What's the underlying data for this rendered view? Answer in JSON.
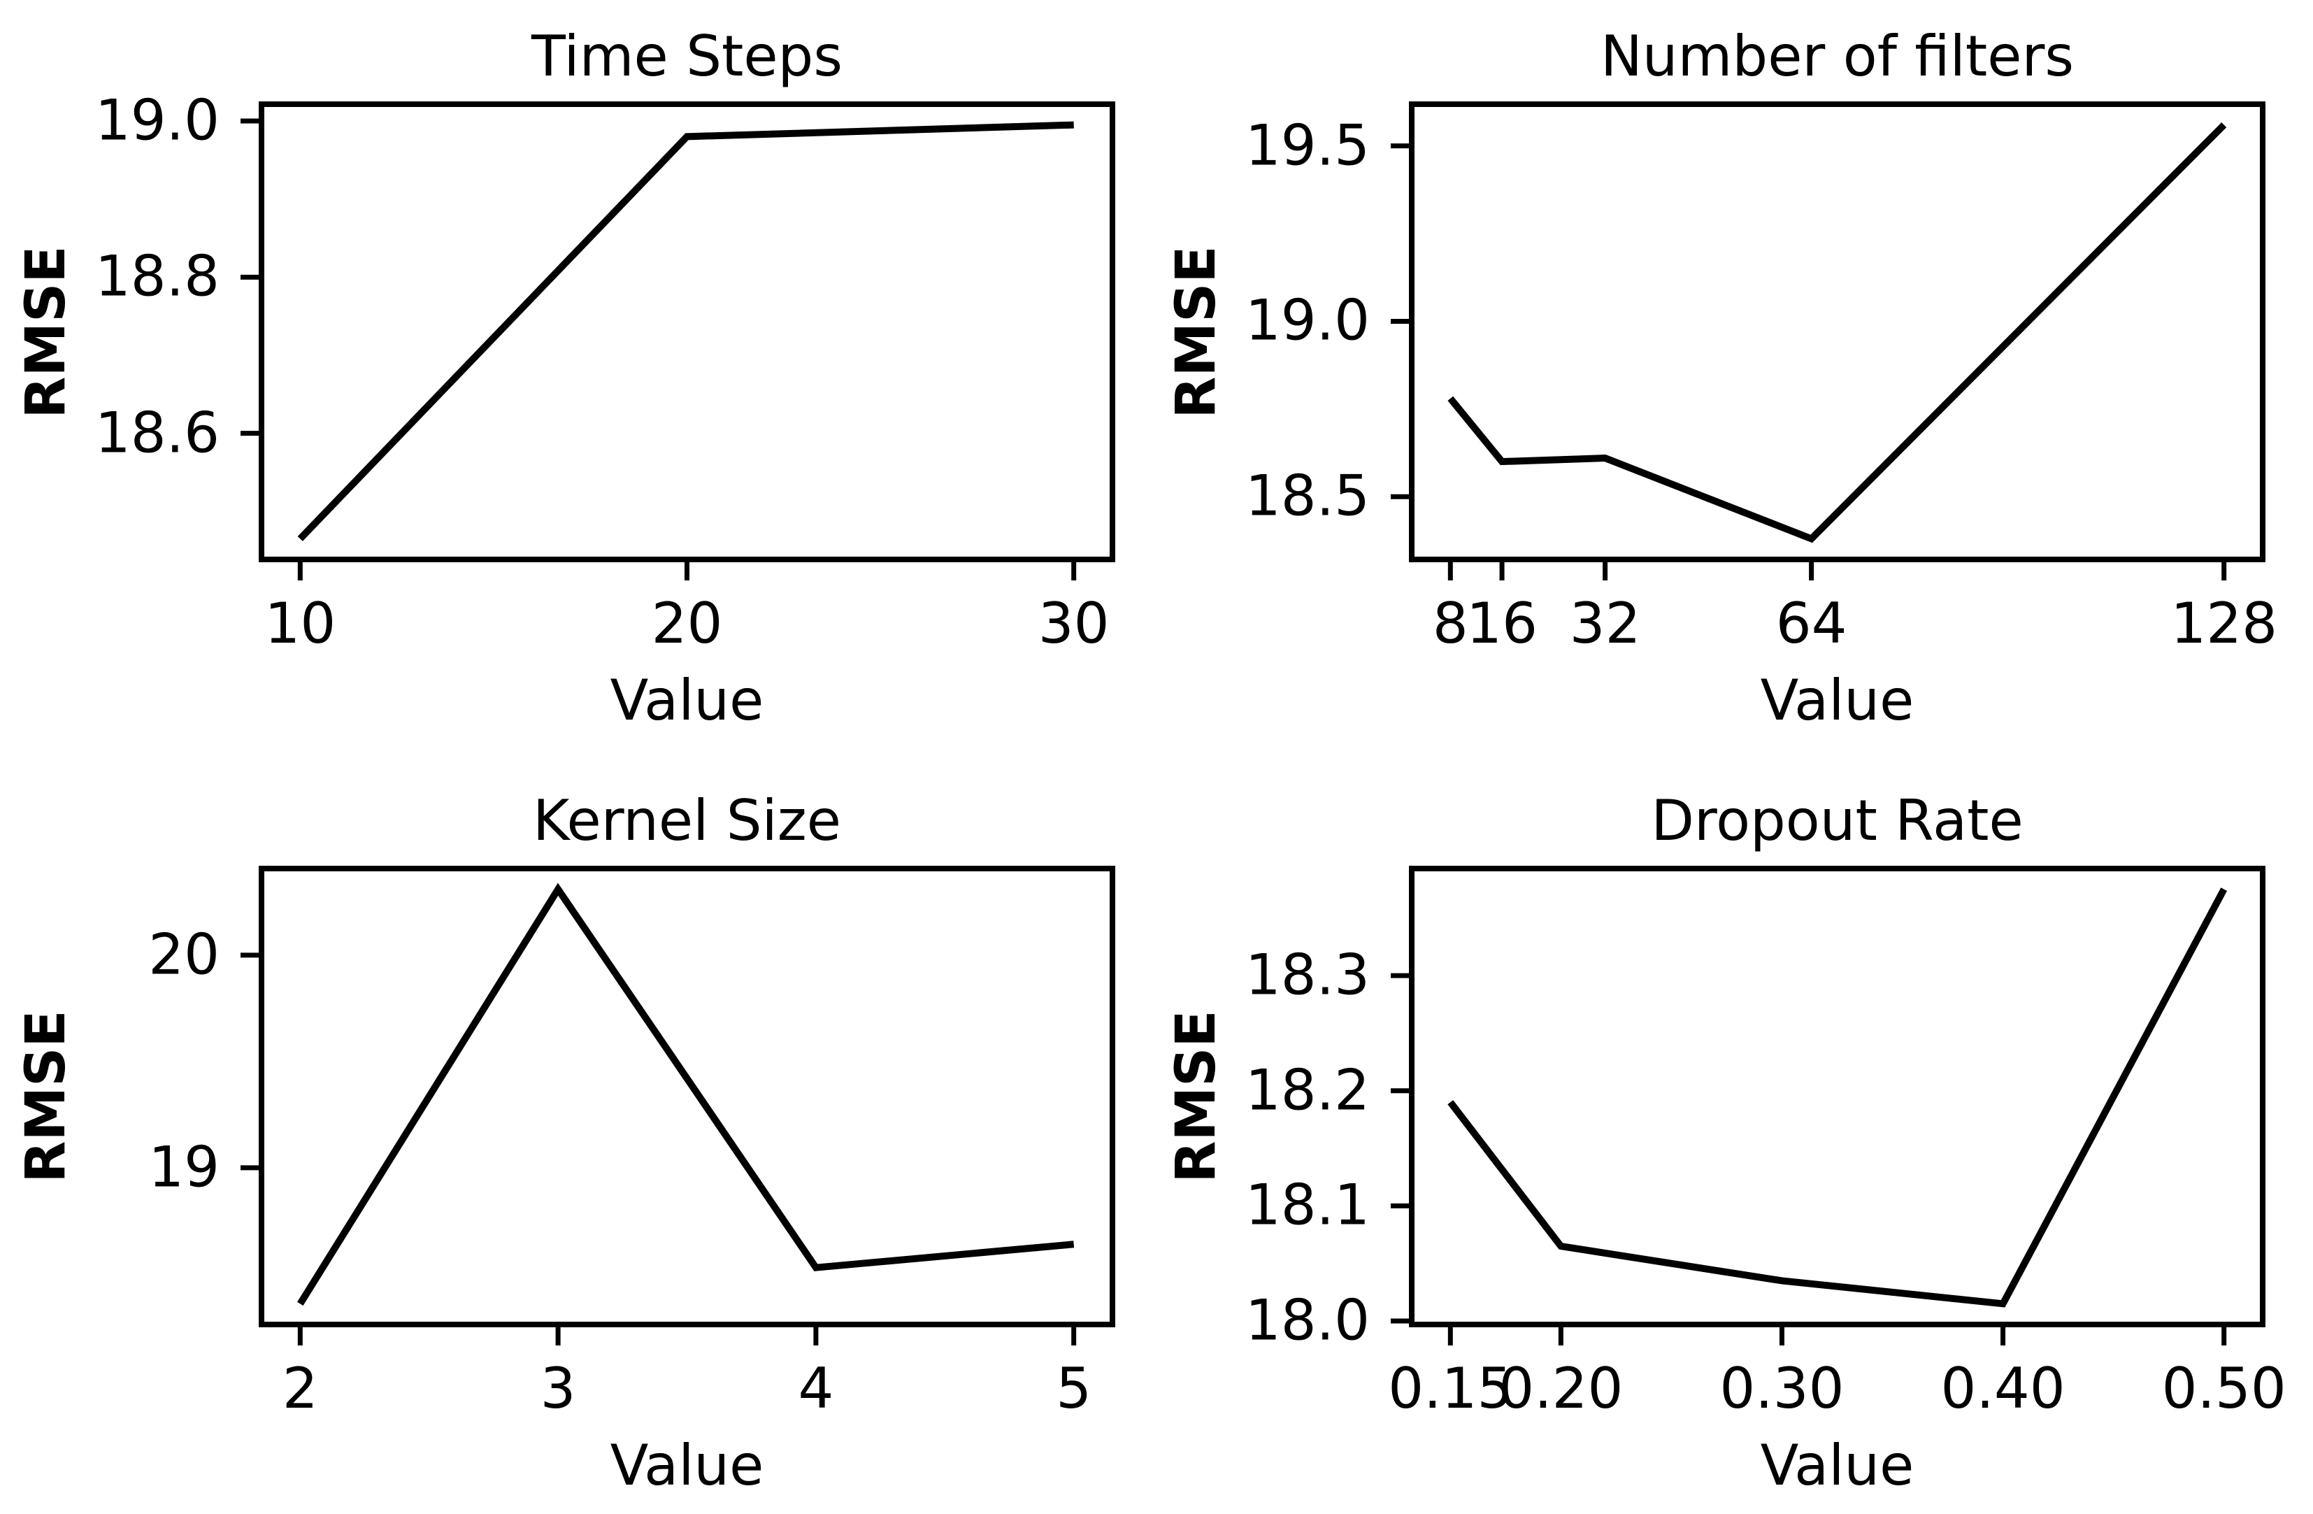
{
  "figure": {
    "background_color": "#ffffff",
    "ink_color": "#000000"
  },
  "chart_data": [
    {
      "type": "line",
      "title": "Time Steps",
      "xlabel": "Value",
      "ylabel": "RMSE",
      "x": [
        10,
        20,
        30
      ],
      "y": [
        18.465,
        18.98,
        18.995
      ],
      "xlim": [
        9,
        31
      ],
      "ylim": [
        18.4385,
        19.0215
      ],
      "xticks": [
        10,
        20,
        30
      ],
      "xtick_labels": [
        "10",
        "20",
        "30"
      ],
      "yticks": [
        18.6,
        18.8,
        19.0
      ],
      "ytick_labels": [
        "18.6",
        "18.8",
        "19.0"
      ],
      "line_color": "#000000",
      "grid": false,
      "legend": null
    },
    {
      "type": "line",
      "title": "Number of filters",
      "xlabel": "Value",
      "ylabel": "RMSE",
      "x": [
        8,
        16,
        32,
        64,
        128
      ],
      "y": [
        18.78,
        18.6,
        18.61,
        18.38,
        19.56
      ],
      "xlim": [
        2,
        134
      ],
      "ylim": [
        18.321,
        19.619
      ],
      "xticks": [
        8,
        16,
        32,
        64,
        128
      ],
      "xtick_labels": [
        "8",
        "16",
        "32",
        "64",
        "128"
      ],
      "yticks": [
        18.5,
        19.0,
        19.5
      ],
      "ytick_labels": [
        "18.5",
        "19.0",
        "19.5"
      ],
      "line_color": "#000000",
      "grid": false,
      "legend": null
    },
    {
      "type": "line",
      "title": "Kernel Size",
      "xlabel": "Value",
      "ylabel": "RMSE",
      "x": [
        2,
        3,
        4,
        5
      ],
      "y": [
        18.36,
        20.31,
        18.53,
        18.64
      ],
      "xlim": [
        1.85,
        5.15
      ],
      "ylim": [
        18.2625,
        20.4075
      ],
      "xticks": [
        2,
        3,
        4,
        5
      ],
      "xtick_labels": [
        "2",
        "3",
        "4",
        "5"
      ],
      "yticks": [
        19,
        20
      ],
      "ytick_labels": [
        "19",
        "20"
      ],
      "line_color": "#000000",
      "grid": false,
      "legend": null
    },
    {
      "type": "line",
      "title": "Dropout Rate",
      "xlabel": "Value",
      "ylabel": "RMSE",
      "x": [
        0.15,
        0.2,
        0.3,
        0.4,
        0.5
      ],
      "y": [
        18.19,
        18.065,
        18.035,
        18.015,
        18.375
      ],
      "xlim": [
        0.1325,
        0.5175
      ],
      "ylim": [
        17.997,
        18.393
      ],
      "xticks": [
        0.15,
        0.2,
        0.3,
        0.4,
        0.5
      ],
      "xtick_labels": [
        "0.15",
        "0.20",
        "0.30",
        "0.40",
        "0.50"
      ],
      "yticks": [
        18.0,
        18.1,
        18.2,
        18.3
      ],
      "ytick_labels": [
        "18.0",
        "18.1",
        "18.2",
        "18.3"
      ],
      "line_color": "#000000",
      "grid": false,
      "legend": null
    }
  ]
}
